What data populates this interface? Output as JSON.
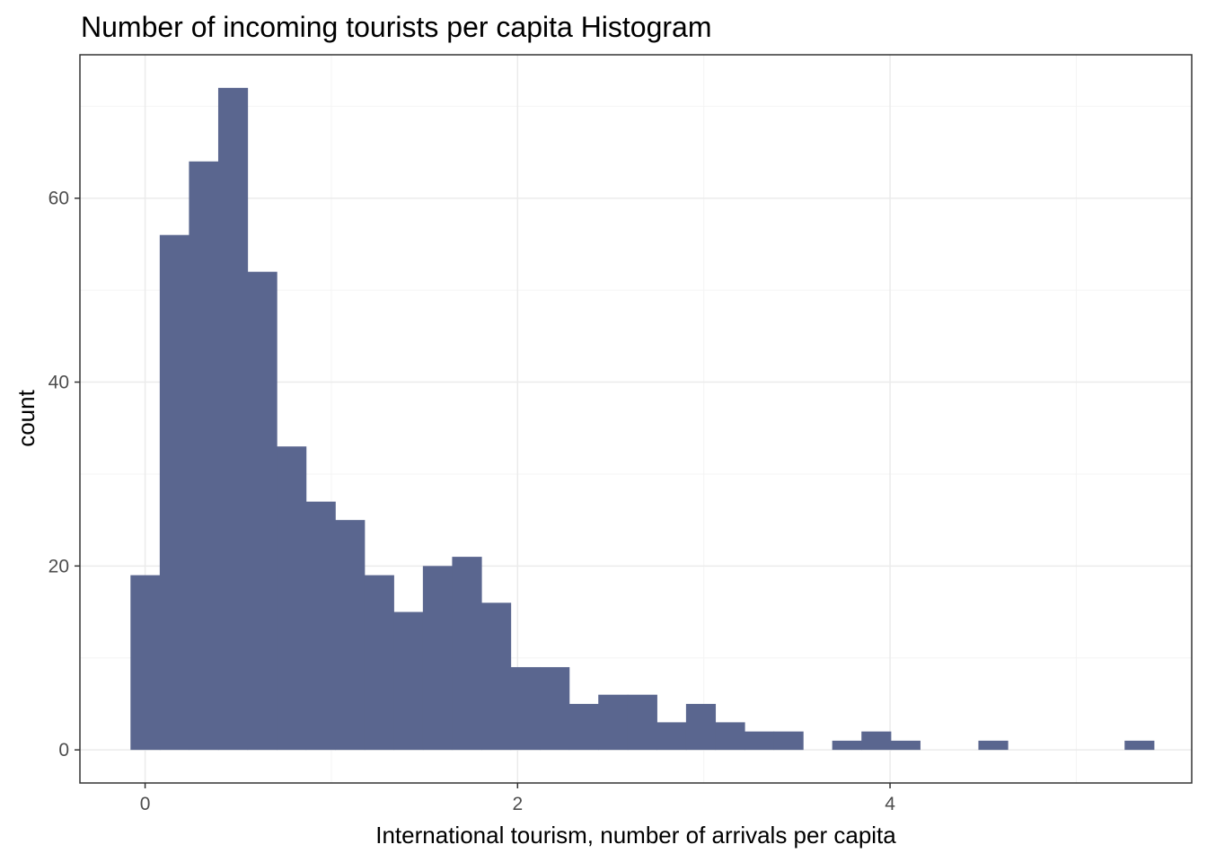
{
  "chart_data": {
    "type": "bar",
    "subtype": "histogram",
    "title": "Number of incoming tourists per capita  Histogram",
    "xlabel": "International tourism, number of arrivals per capita",
    "ylabel": "count",
    "bin_width": 0.157,
    "bin_start": -0.0785,
    "counts": [
      19,
      56,
      64,
      72,
      52,
      33,
      27,
      25,
      19,
      15,
      20,
      21,
      16,
      9,
      9,
      5,
      6,
      6,
      3,
      5,
      3,
      2,
      2,
      0,
      1,
      2,
      1,
      0,
      0,
      1,
      0,
      0,
      0,
      0,
      1
    ],
    "xlim": [
      -0.35,
      5.62
    ],
    "ylim": [
      -3.6,
      75.6
    ],
    "x_ticks": [
      0,
      2,
      4
    ],
    "x_tick_labels": [
      "0",
      "2",
      "4"
    ],
    "y_ticks": [
      0,
      20,
      40,
      60
    ],
    "y_tick_labels": [
      "0",
      "20",
      "40",
      "60"
    ],
    "x_minor_ticks": [
      1,
      3,
      5
    ],
    "y_minor_ticks": [
      10,
      30,
      50,
      70
    ],
    "grid": true,
    "legend": "none",
    "colors": {
      "bar_fill": "#5a668f",
      "panel_border": "#333333",
      "grid_major": "#ebebeb",
      "grid_minor": "#f4f4f4",
      "background": "#ffffff"
    }
  }
}
